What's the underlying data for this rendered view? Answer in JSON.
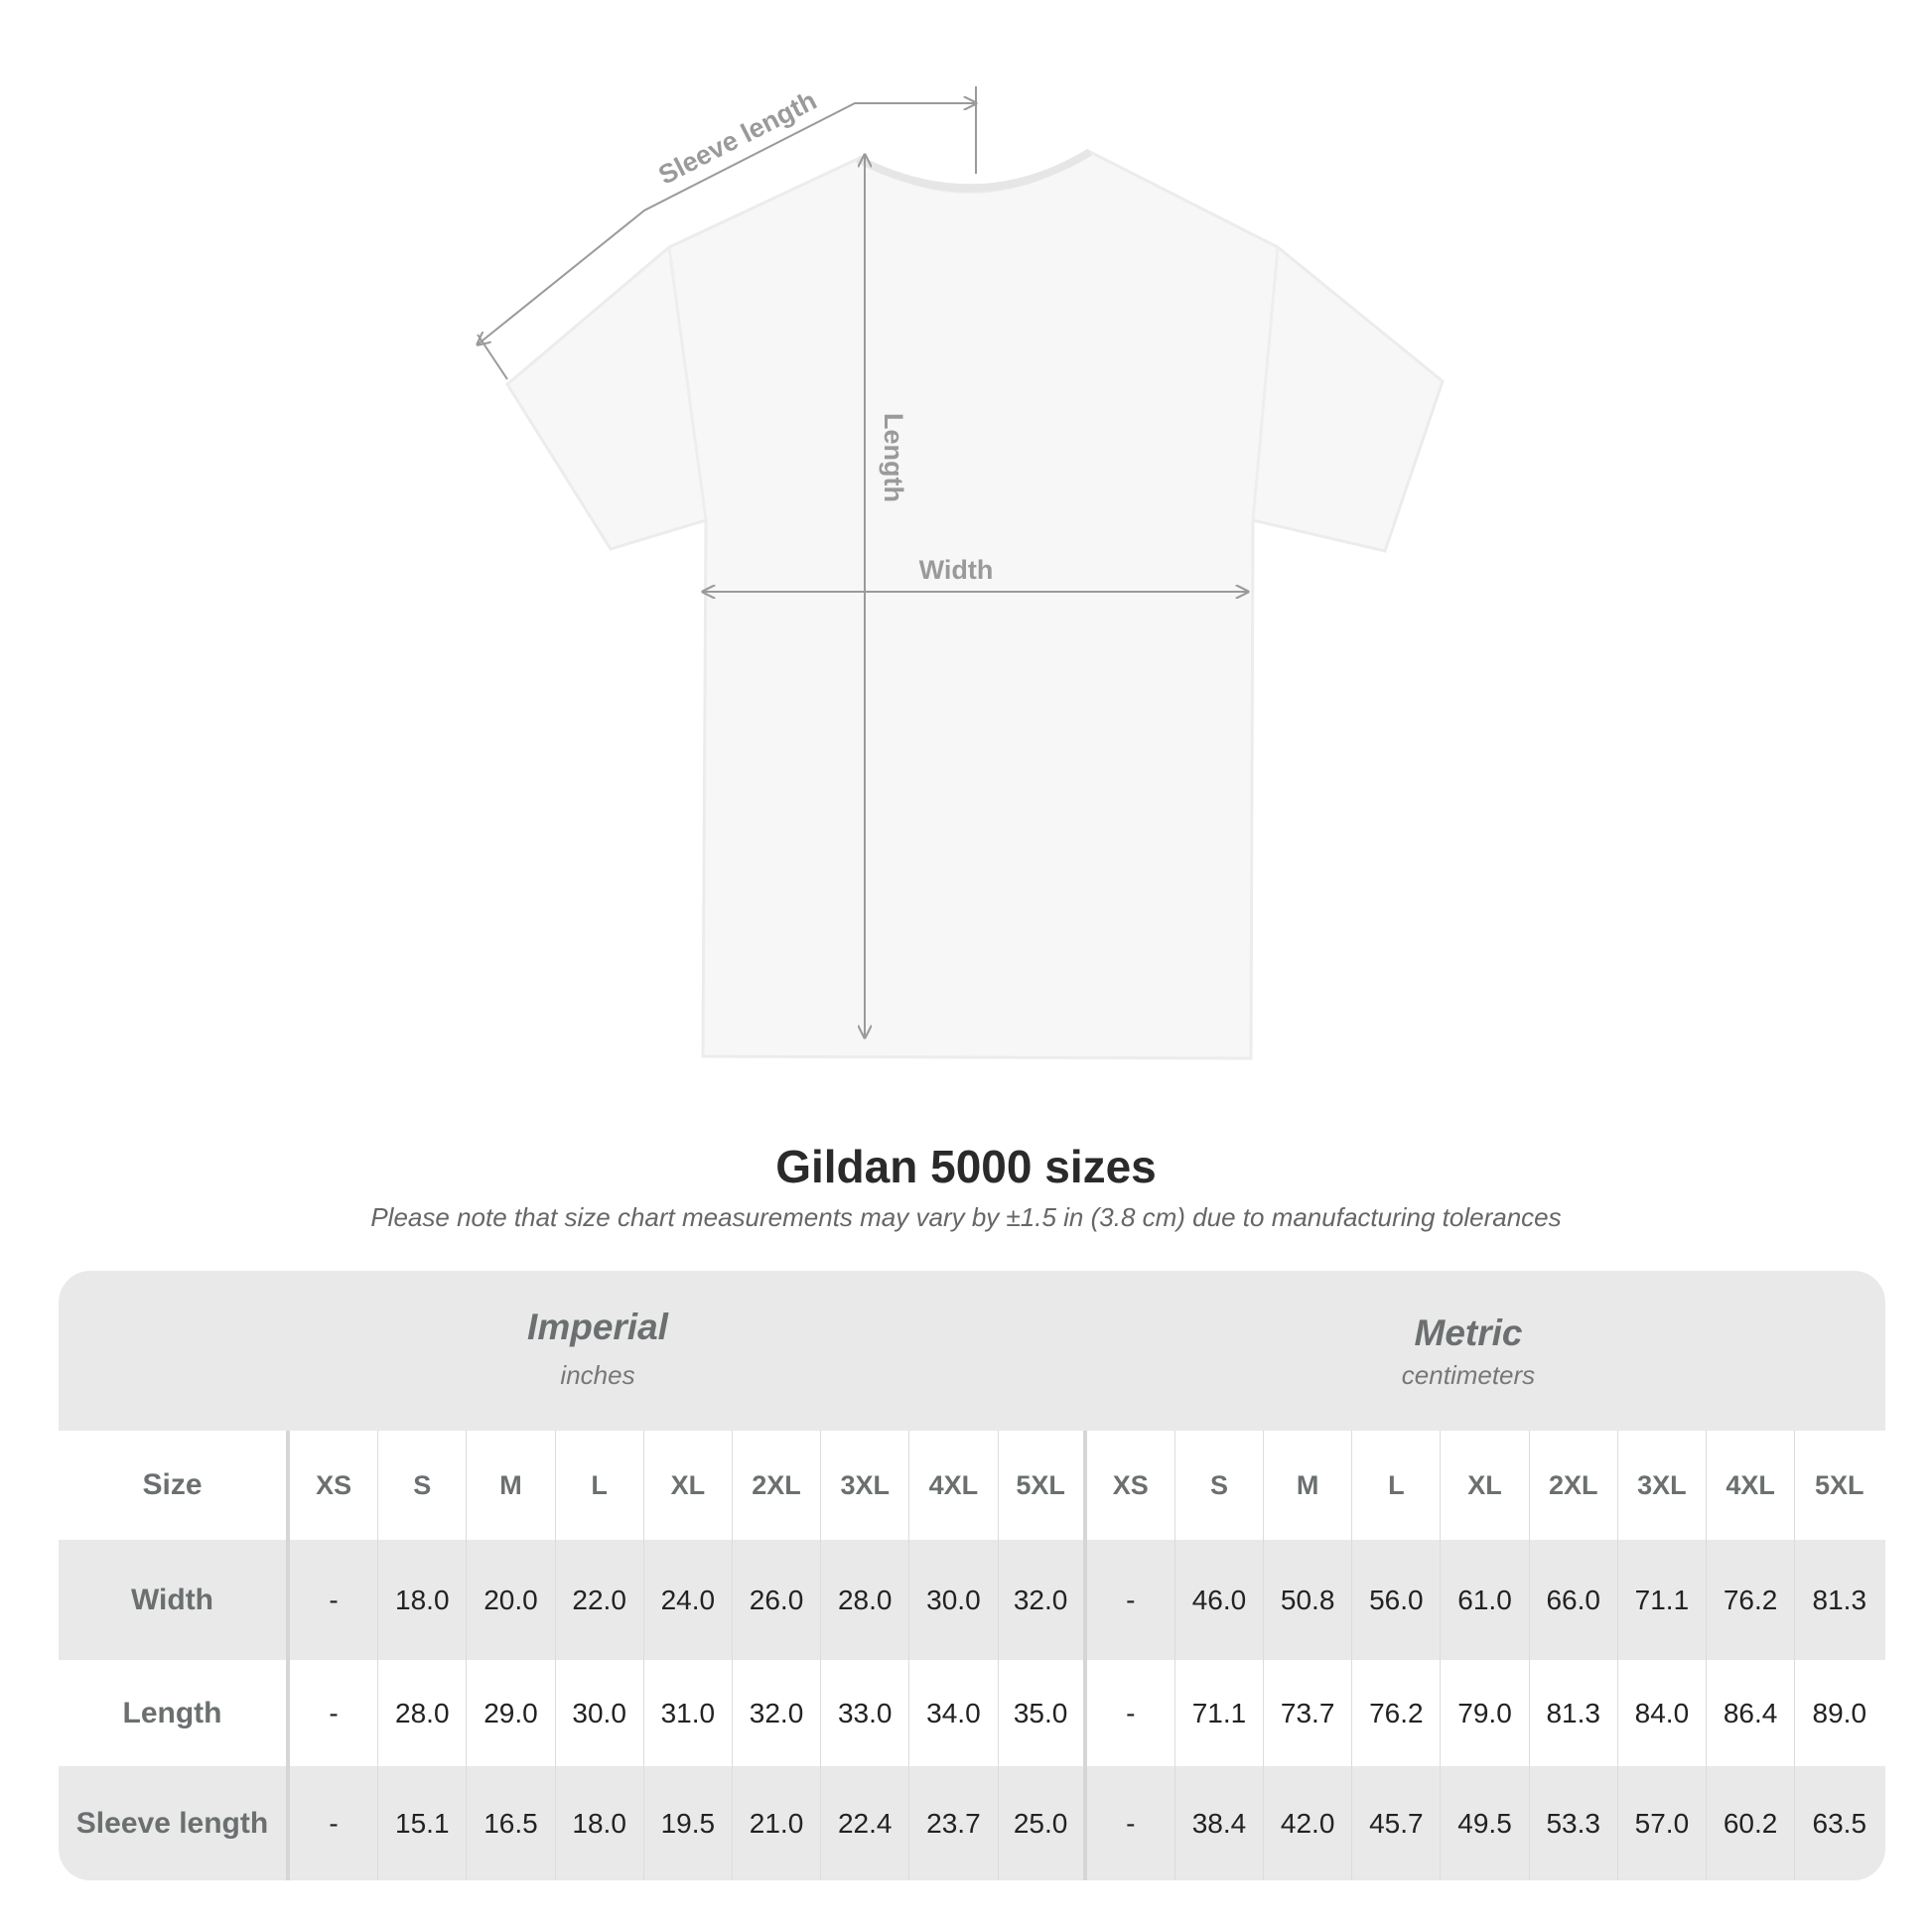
{
  "diagram": {
    "labels": {
      "sleeve": "Sleeve length",
      "length": "Length",
      "width": "Width"
    },
    "line_color": "#9a9a9a"
  },
  "title": "Gildan 5000 sizes",
  "subtitle": "Please note that size chart measurements may vary by ±1.5 in (3.8 cm) due to manufacturing tolerances",
  "table": {
    "imperial": {
      "name": "Imperial",
      "unit": "inches"
    },
    "metric": {
      "name": "Metric",
      "unit": "centimeters"
    },
    "size_label": "Size",
    "sizes": [
      "XS",
      "S",
      "M",
      "L",
      "XL",
      "2XL",
      "3XL",
      "4XL",
      "5XL"
    ],
    "rows": [
      {
        "label": "Width",
        "imperial": [
          "-",
          "18.0",
          "20.0",
          "22.0",
          "24.0",
          "26.0",
          "28.0",
          "30.0",
          "32.0"
        ],
        "metric": [
          "-",
          "46.0",
          "50.8",
          "56.0",
          "61.0",
          "66.0",
          "71.1",
          "76.2",
          "81.3"
        ]
      },
      {
        "label": "Length",
        "imperial": [
          "-",
          "28.0",
          "29.0",
          "30.0",
          "31.0",
          "32.0",
          "33.0",
          "34.0",
          "35.0"
        ],
        "metric": [
          "-",
          "71.1",
          "73.7",
          "76.2",
          "79.0",
          "81.3",
          "84.0",
          "86.4",
          "89.0"
        ]
      },
      {
        "label": "Sleeve length",
        "imperial": [
          "-",
          "15.1",
          "16.5",
          "18.0",
          "19.5",
          "21.0",
          "22.4",
          "23.7",
          "25.0"
        ],
        "metric": [
          "-",
          "38.4",
          "42.0",
          "45.7",
          "49.5",
          "53.3",
          "57.0",
          "60.2",
          "63.5"
        ]
      }
    ],
    "colors": {
      "band": "#e9e9e9",
      "label_text": "#6b6f70",
      "value_text": "#222222"
    }
  }
}
